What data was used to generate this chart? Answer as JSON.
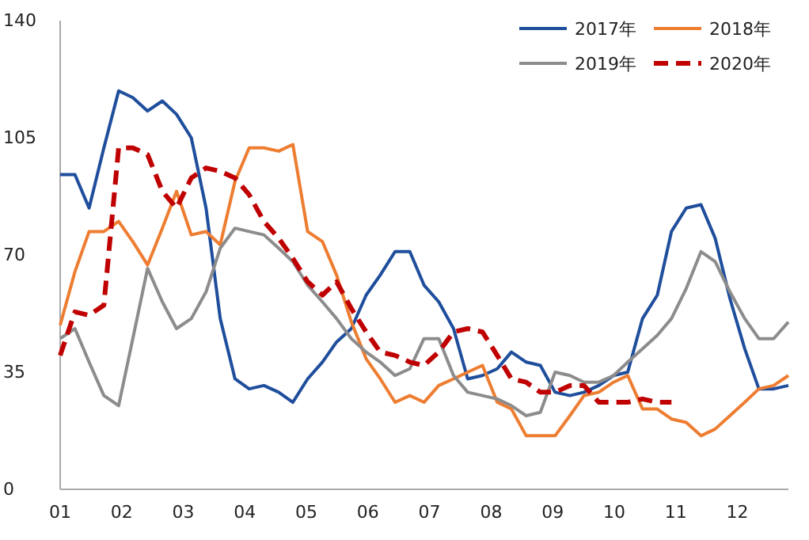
{
  "chart_data": {
    "type": "line",
    "x": [
      1,
      1.24,
      1.47,
      1.71,
      1.95,
      2.18,
      2.42,
      2.66,
      2.89,
      3.13,
      3.37,
      3.6,
      3.84,
      4.07,
      4.31,
      4.55,
      4.78,
      5.02,
      5.26,
      5.49,
      5.73,
      5.97,
      6.2,
      6.44,
      6.68,
      6.91,
      7.15,
      7.39,
      7.62,
      7.86,
      8.1,
      8.33,
      8.57,
      8.8,
      9.04,
      9.28,
      9.51,
      9.75,
      9.99,
      10.22,
      10.46,
      10.7,
      10.93,
      11.17,
      11.41,
      11.64,
      11.88,
      12.12,
      12.35,
      12.59,
      12.83
    ],
    "xlim": [
      1,
      12.83
    ],
    "xticks": [
      {
        "value": 1,
        "label": "01"
      },
      {
        "value": 2,
        "label": "02"
      },
      {
        "value": 3,
        "label": "03"
      },
      {
        "value": 4,
        "label": "04"
      },
      {
        "value": 5,
        "label": "05"
      },
      {
        "value": 6,
        "label": "06"
      },
      {
        "value": 7,
        "label": "07"
      },
      {
        "value": 8,
        "label": "08"
      },
      {
        "value": 9,
        "label": "09"
      },
      {
        "value": 10,
        "label": "10"
      },
      {
        "value": 11,
        "label": "11"
      },
      {
        "value": 12,
        "label": "12"
      }
    ],
    "ylim": [
      0,
      140
    ],
    "yticks": [
      0,
      35,
      70,
      105,
      140
    ],
    "legend": "top right",
    "grid": false,
    "series": [
      {
        "name": "2017年",
        "color": "#1f4e9c",
        "line_style": "solid",
        "values": [
          94,
          94,
          84,
          102,
          119,
          117,
          113,
          116,
          112,
          105,
          84,
          51,
          33,
          30,
          31,
          29,
          26,
          33,
          38,
          44,
          48,
          58,
          64,
          71,
          71,
          61,
          56,
          48,
          33,
          34,
          36,
          41,
          38,
          37,
          29,
          28,
          29,
          31,
          34,
          35,
          51,
          58,
          77,
          84,
          85,
          75,
          57,
          42,
          30,
          30,
          31
        ]
      },
      {
        "name": "2018年",
        "color": "#ed7d31",
        "line_style": "solid",
        "values": [
          49,
          65,
          77,
          77,
          80,
          74,
          67,
          78,
          89,
          76,
          77,
          73,
          92,
          102,
          102,
          101,
          103,
          77,
          74,
          64,
          50,
          39,
          33,
          26,
          28,
          26,
          31,
          33,
          35,
          37,
          26,
          24,
          16,
          16,
          16,
          22,
          28,
          29,
          32,
          34,
          24,
          24,
          21,
          20,
          16,
          18,
          22,
          26,
          30,
          31,
          34
        ]
      },
      {
        "name": "2019年",
        "color": "#8c8c8c",
        "line_style": "solid",
        "values": [
          45,
          48,
          38,
          28,
          25,
          45,
          66,
          56,
          48,
          51,
          59,
          72,
          78,
          77,
          76,
          72,
          68,
          61,
          56,
          51,
          45,
          41,
          38,
          34,
          36,
          45,
          45,
          34,
          29,
          28,
          27,
          25,
          22,
          23,
          35,
          34,
          32,
          32,
          34,
          38,
          42,
          46,
          51,
          60,
          71,
          68,
          59,
          51,
          45,
          45,
          50
        ]
      },
      {
        "name": "2020年",
        "color": "#c00000",
        "line_style": "dashed",
        "values": [
          40,
          53,
          52,
          55,
          102,
          102,
          100,
          89,
          84,
          93,
          96,
          95,
          93,
          88,
          80,
          75,
          69,
          62,
          58,
          62,
          54,
          47,
          41,
          40,
          38,
          37,
          41,
          47,
          48,
          47,
          40,
          33,
          32,
          29,
          29,
          31,
          31,
          26,
          26,
          26,
          27,
          26,
          26,
          null,
          null,
          null,
          null,
          null,
          null,
          null,
          null
        ]
      }
    ]
  }
}
